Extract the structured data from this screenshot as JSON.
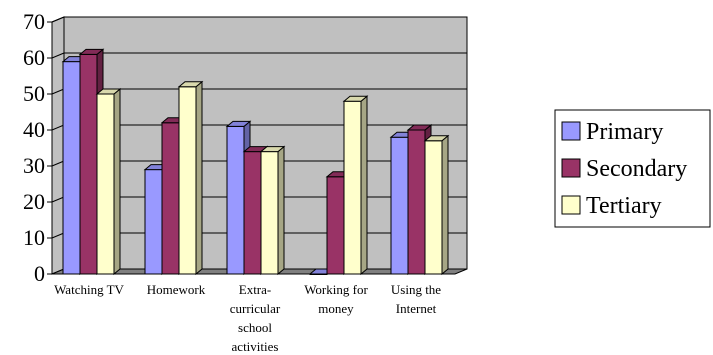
{
  "chart_data": {
    "type": "bar",
    "title": "",
    "xlabel": "",
    "ylabel": "",
    "ylim": [
      0,
      70
    ],
    "yticks": [
      0,
      10,
      20,
      30,
      40,
      50,
      60,
      70
    ],
    "ytick_labels": [
      "0",
      "10",
      "20",
      "30",
      "40",
      "50",
      "60",
      "70"
    ],
    "grid": true,
    "style": "3d-clustered-column",
    "legend": "right",
    "categories": [
      [
        "Watching TV"
      ],
      [
        "Homework"
      ],
      [
        "Extra-",
        "curricular",
        "school",
        "activities"
      ],
      [
        "Working for",
        "money"
      ],
      [
        "Using the",
        "Internet"
      ]
    ],
    "series": [
      {
        "name": "Primary",
        "color": "#9999ff",
        "values": [
          59,
          29,
          41,
          0,
          38
        ]
      },
      {
        "name": "Secondary",
        "color": "#993366",
        "values": [
          61,
          42,
          34,
          27,
          40
        ]
      },
      {
        "name": "Tertiary",
        "color": "#ffffcc",
        "values": [
          50,
          52,
          34,
          48,
          37
        ]
      }
    ],
    "colors": {
      "wall": "#c0c0c0",
      "floor": "#808080",
      "gridline": "#000000"
    }
  }
}
